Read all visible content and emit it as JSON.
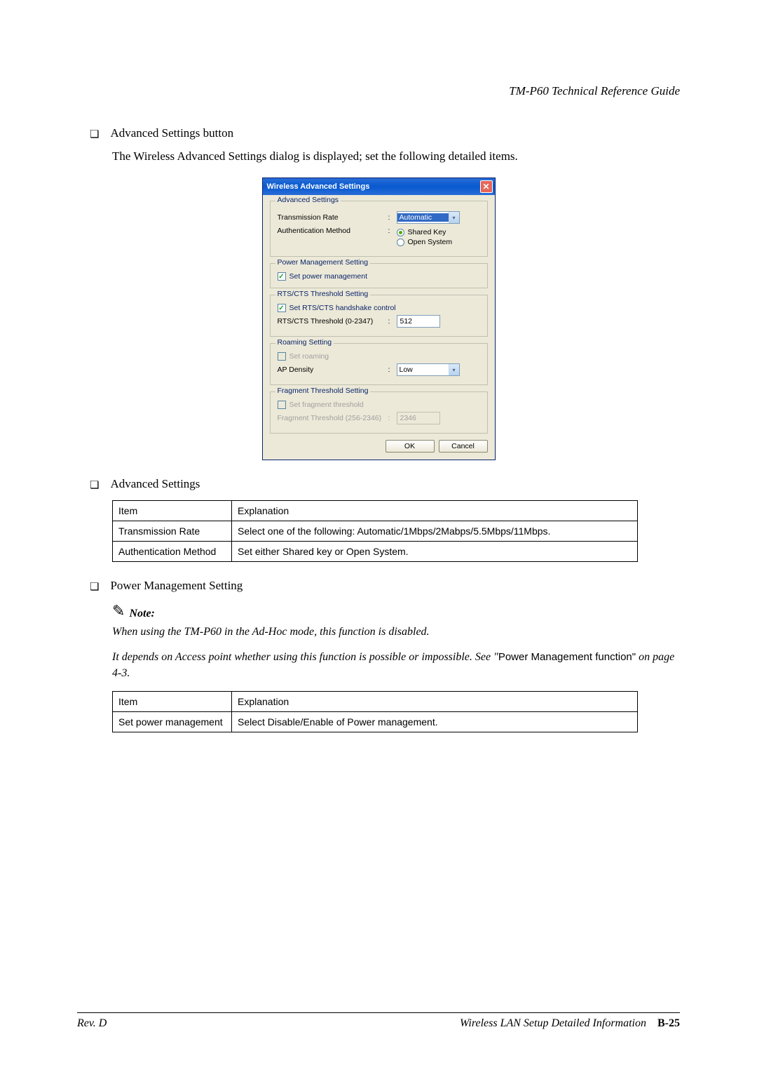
{
  "header": {
    "title": "TM-P60 Technical Reference Guide"
  },
  "section1": {
    "bullet": "Advanced Settings button",
    "paragraph": "The Wireless Advanced Settings dialog is displayed; set the following detailed items."
  },
  "dialog": {
    "title": "Wireless Advanced Settings",
    "groups": {
      "advanced": {
        "title": "Advanced Settings",
        "transmission_label": "Transmission Rate",
        "transmission_value": "Automatic",
        "auth_label": "Authentication Method",
        "radio_shared": "Shared Key",
        "radio_open": "Open System"
      },
      "power": {
        "title": "Power Management Setting",
        "cb_label": "Set power management"
      },
      "rts": {
        "title": "RTS/CTS Threshold Setting",
        "cb_label": "Set RTS/CTS handshake control",
        "threshold_label": "RTS/CTS Threshold (0-2347)",
        "threshold_value": "512"
      },
      "roaming": {
        "title": "Roaming Setting",
        "cb_label": "Set roaming",
        "density_label": "AP Density",
        "density_value": "Low"
      },
      "fragment": {
        "title": "Fragment Threshold Setting",
        "cb_label": "Set fragment threshold",
        "threshold_label": "Fragment Threshold (256-2346)",
        "threshold_value": "2346"
      }
    },
    "buttons": {
      "ok": "OK",
      "cancel": "Cancel"
    }
  },
  "section2": {
    "bullet": "Advanced Settings",
    "table": {
      "h1": "Item",
      "h2": "Explanation",
      "r1c1": "Transmission Rate",
      "r1c2": "Select one of the following: Automatic/1Mbps/2Mabps/5.5Mbps/11Mbps.",
      "r2c1": "Authentication Method",
      "r2c2": "Set either Shared key or Open System."
    }
  },
  "section3": {
    "bullet": "Power Management Setting",
    "note_label": "Note:",
    "note_line1": "When using the TM-P60 in the Ad-Hoc mode, this function is disabled.",
    "note_line2a": "It depends on Access point whether using this function is possible or impossible.  See  \"",
    "note_line2b": "Power Management function\"",
    "note_line2c": " on page 4-3.",
    "table": {
      "h1": "Item",
      "h2": "Explanation",
      "r1c1": "Set power management",
      "r1c2": "Select Disable/Enable of Power management."
    }
  },
  "footer": {
    "left": "Rev. D",
    "right_text": "Wireless LAN Setup Detailed Information",
    "page": "B-25"
  }
}
